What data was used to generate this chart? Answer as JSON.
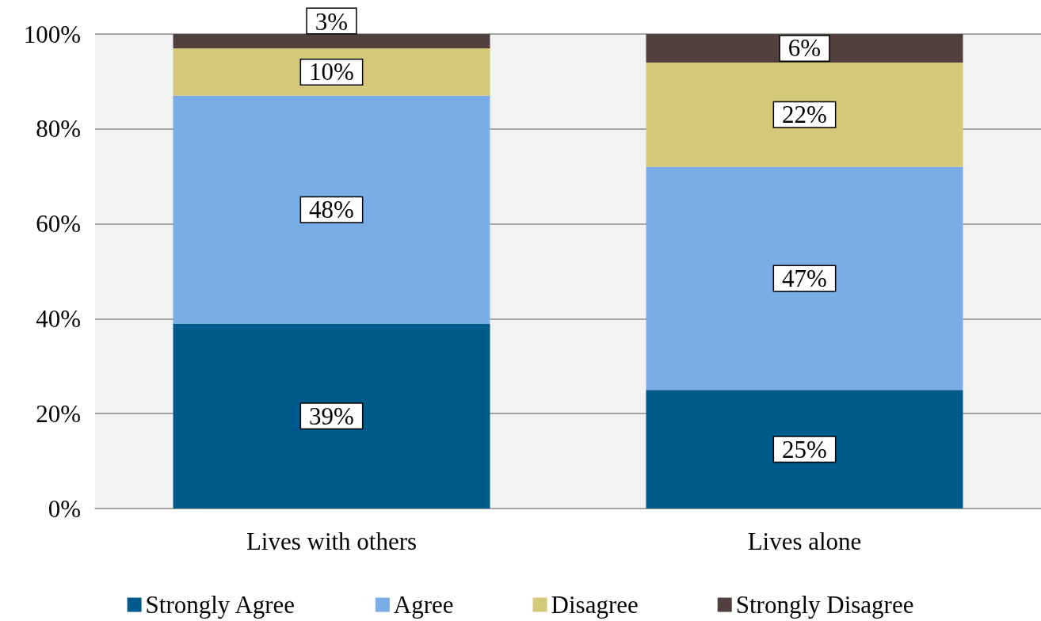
{
  "chart_data": {
    "type": "bar",
    "stacked": true,
    "categories": [
      "Lives with others",
      "Lives alone"
    ],
    "series": [
      {
        "name": "Strongly Agree",
        "color": "#005a8c",
        "values": [
          39,
          25
        ],
        "value_labels": [
          "39%",
          "25%"
        ]
      },
      {
        "name": "Agree",
        "color": "#7aade6",
        "values": [
          48,
          47
        ],
        "value_labels": [
          "48%",
          "47%"
        ]
      },
      {
        "name": "Disagree",
        "color": "#d4c87a",
        "values": [
          10,
          22
        ],
        "value_labels": [
          "10%",
          "22%"
        ]
      },
      {
        "name": "Strongly Disagree",
        "color": "#52403f",
        "values": [
          3,
          6
        ],
        "value_labels": [
          "3%",
          "6%"
        ]
      }
    ],
    "ylim": [
      0,
      100
    ],
    "yticks": [
      {
        "value": 0,
        "label": "0%"
      },
      {
        "value": 20,
        "label": "20%"
      },
      {
        "value": 40,
        "label": "40%"
      },
      {
        "value": 60,
        "label": "60%"
      },
      {
        "value": 80,
        "label": "80%"
      },
      {
        "value": 100,
        "label": "100%"
      }
    ],
    "grid": "y",
    "legend": "bottom"
  }
}
